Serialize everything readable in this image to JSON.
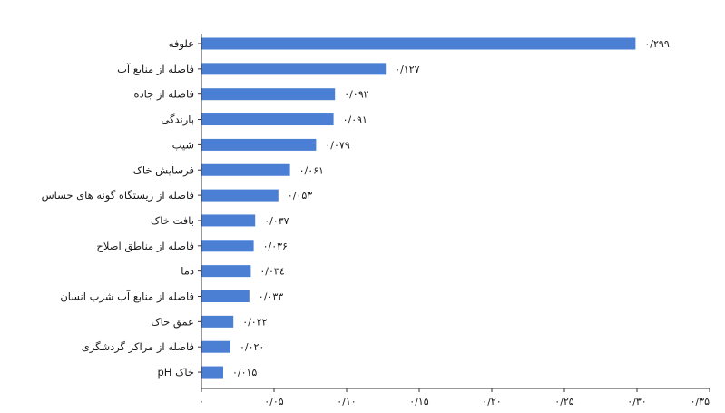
{
  "chart_data": {
    "type": "bar",
    "orientation": "horizontal",
    "title": "",
    "xlabel": "",
    "ylabel": "",
    "xlim": [
      0,
      0.35
    ],
    "grid": false,
    "legend": "none",
    "bar_color": "#4a7fd4",
    "categories": [
      "علوفه",
      "فاصله از منابع آب",
      "فاصله از جاده",
      "بارندگی",
      "شیب",
      "فرسایش خاک",
      "فاصله از زیستگاه گونه های حساس",
      "بافت خاک",
      "فاصله از مناطق اصلاح",
      "دما",
      "فاصله از منابع آب شرب انسان",
      "عمق خاک",
      "فاصله از مراکز گردشگری",
      "pH خاک"
    ],
    "values": [
      0.299,
      0.127,
      0.092,
      0.091,
      0.079,
      0.061,
      0.053,
      0.037,
      0.036,
      0.034,
      0.033,
      0.022,
      0.02,
      0.015
    ],
    "value_labels": [
      "۰/۲۹۹",
      "۰/۱۲۷",
      "۰/۰۹۲",
      "۰/۰۹۱",
      "۰/۰۷۹",
      "۰/۰۶۱",
      "۰/۰۵۳",
      "۰/۰۳۷",
      "۰/۰۳۶",
      "۰/۰۳٤",
      "۰/۰۳۳",
      "۰/۰۲۲",
      "۰/۰۲۰",
      "۰/۰۱۵"
    ],
    "x_ticks": [
      0,
      0.05,
      0.1,
      0.15,
      0.2,
      0.25,
      0.3,
      0.35
    ],
    "x_tick_labels": [
      "۰",
      "۰/۰۵",
      "۰/۱۰",
      "۰/۱۵",
      "۰/۲۰",
      "۰/۲۵",
      "۰/۳۰",
      "۰/۳۵"
    ]
  }
}
